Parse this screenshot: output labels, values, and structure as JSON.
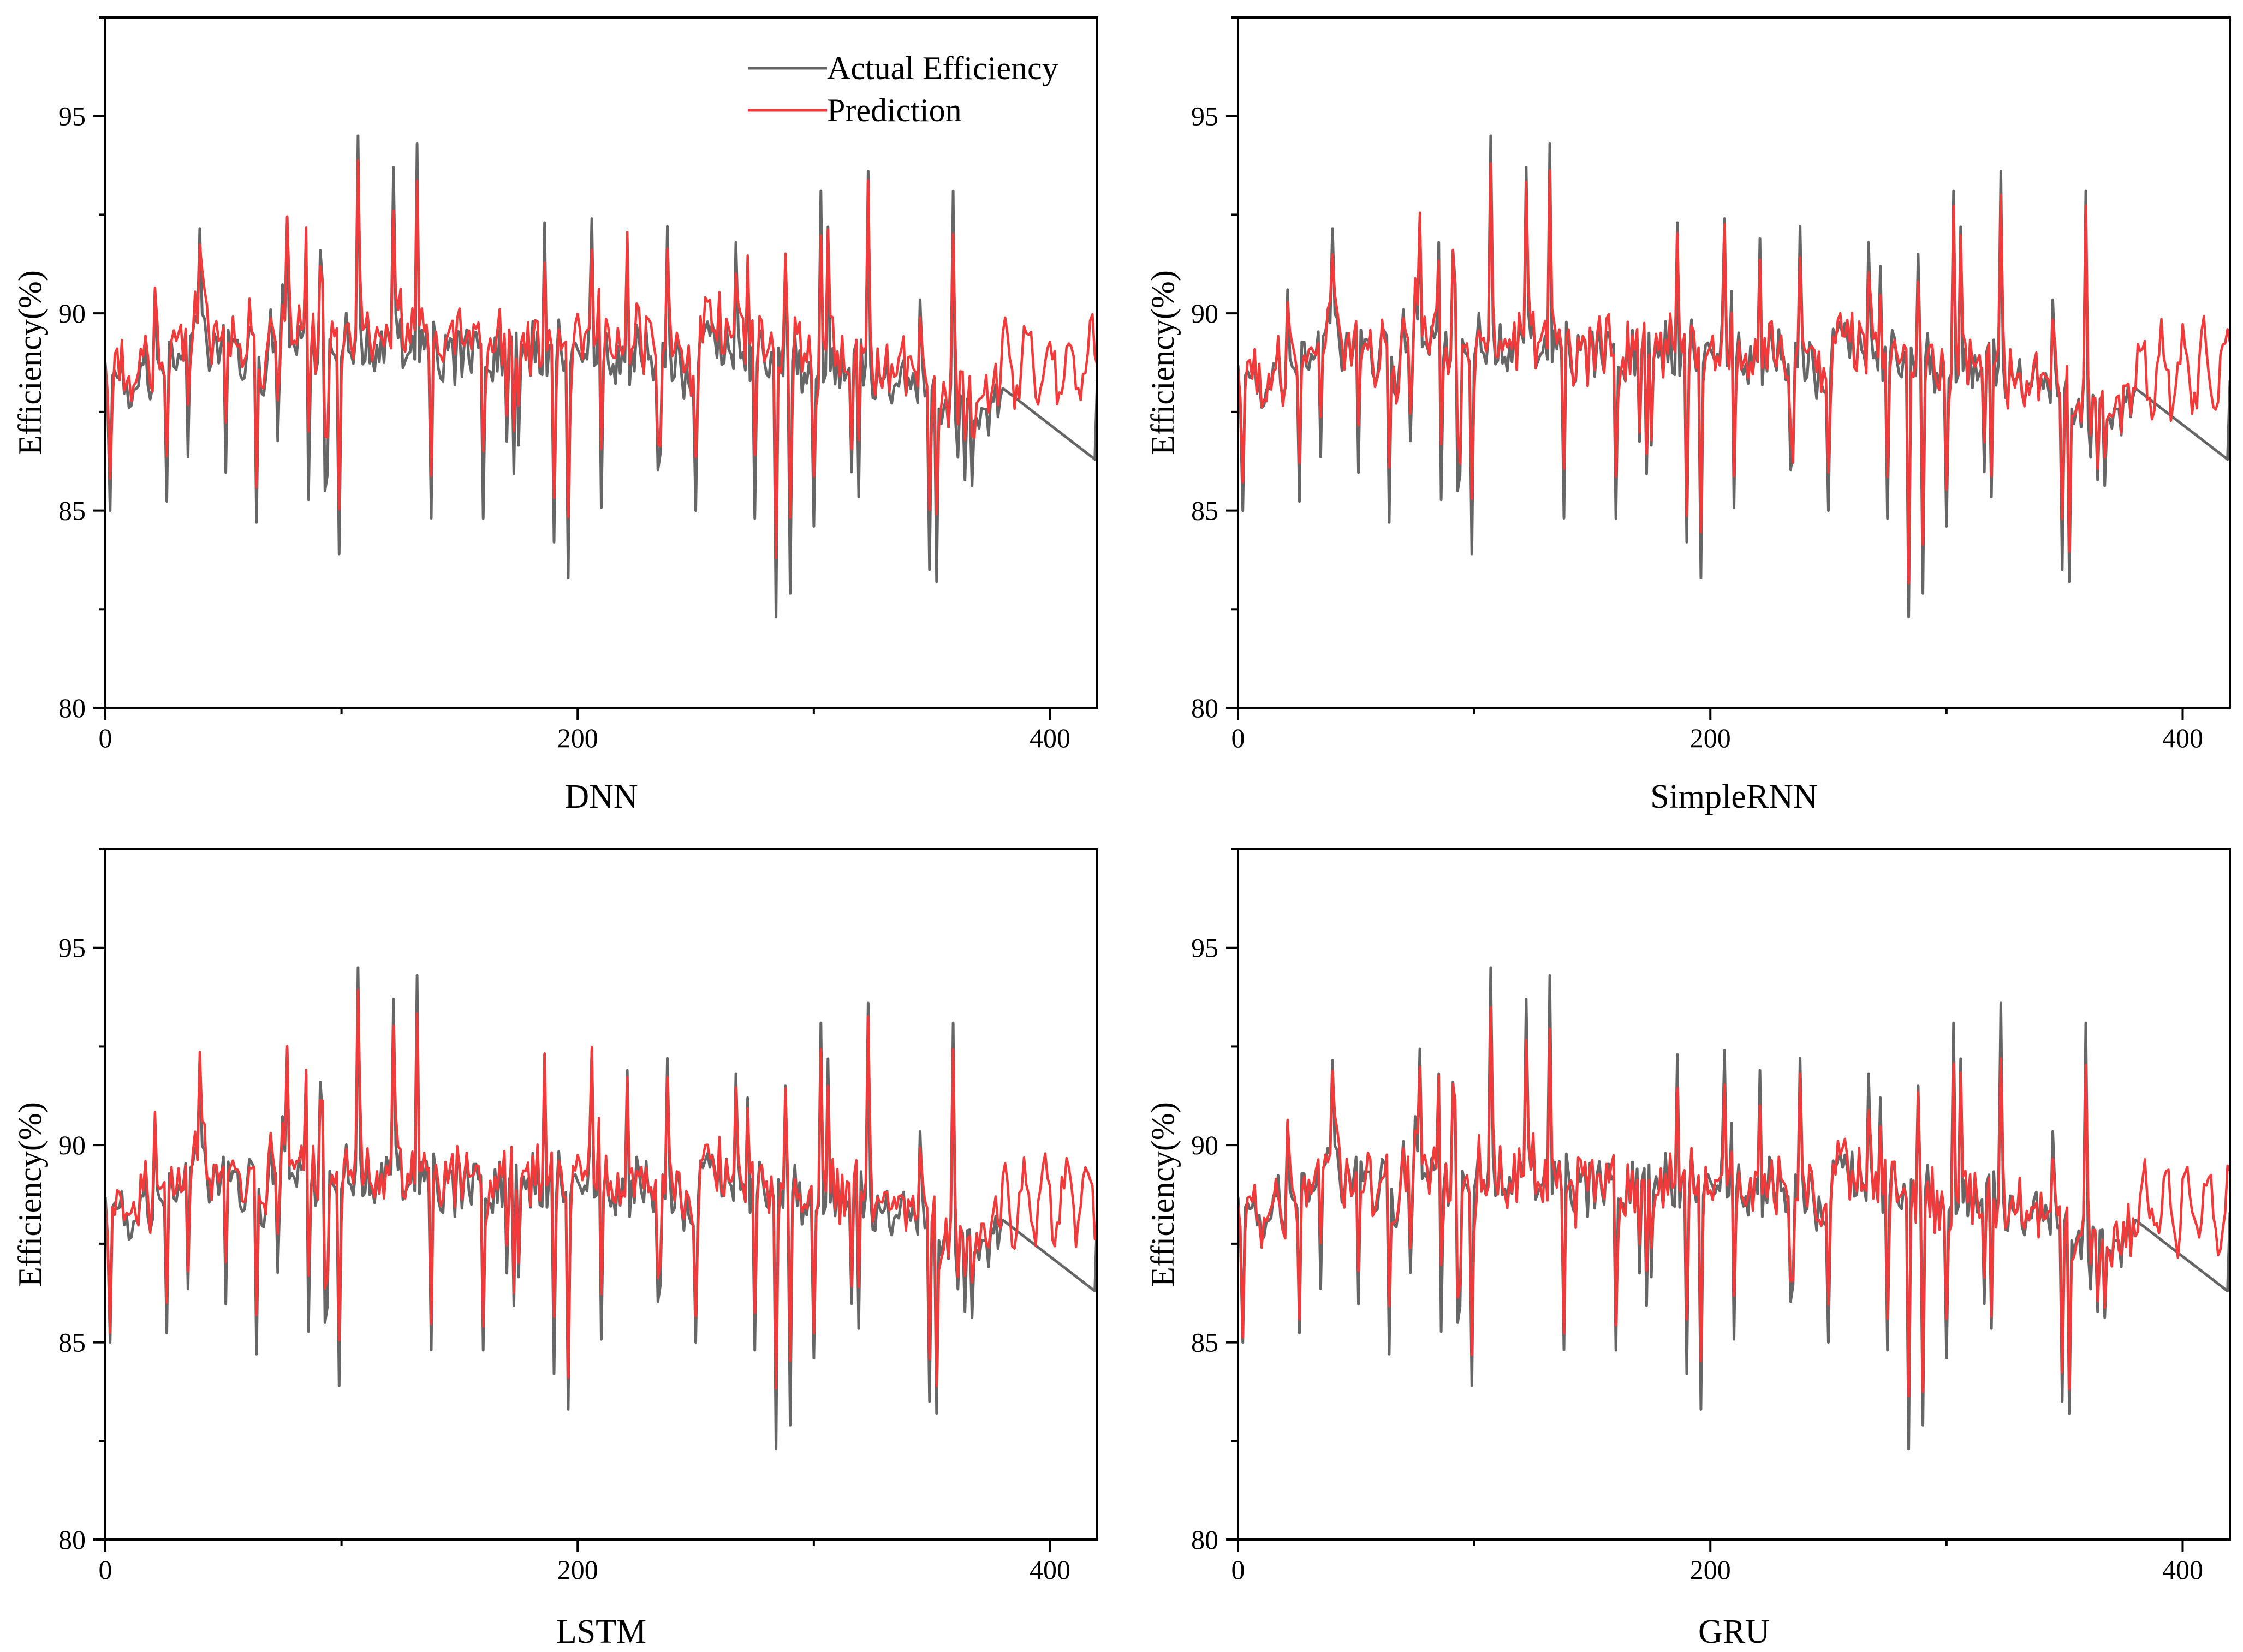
{
  "figure": {
    "legend": {
      "actual_label": "Actual Efficiency",
      "prediction_label": "Prediction"
    },
    "colors": {
      "actual": "#666666",
      "prediction": "#f23a3a",
      "axis": "#000000"
    }
  },
  "chart_data": [
    {
      "type": "line",
      "panel_label": "DNN",
      "xlabel": "",
      "ylabel": "Efficiency(%)",
      "xlim": [
        0,
        420
      ],
      "ylim": [
        80,
        97.5
      ],
      "xticks": [
        "0",
        "200",
        "400"
      ],
      "yticks": [
        "80",
        "85",
        "90",
        "95"
      ],
      "legend_position": "top-right",
      "show_legend": true,
      "series": [
        {
          "name": "Actual Efficiency",
          "seed": 7,
          "values_note": "shared actual series"
        },
        {
          "name": "Prediction",
          "seed": 11,
          "fit": 0.78,
          "noise": 0.55,
          "bias": 0.35
        }
      ]
    },
    {
      "type": "line",
      "panel_label": "SimpleRNN",
      "xlabel": "",
      "ylabel": "Efficiency(%)",
      "xlim": [
        0,
        420
      ],
      "ylim": [
        80,
        97.5
      ],
      "xticks": [
        "0",
        "200",
        "400"
      ],
      "yticks": [
        "80",
        "85",
        "90",
        "95"
      ],
      "legend_position": "none",
      "show_legend": false,
      "series": [
        {
          "name": "Actual Efficiency",
          "seed": 7,
          "values_note": "shared actual series"
        },
        {
          "name": "Prediction",
          "seed": 23,
          "fit": 0.82,
          "noise": 0.45,
          "bias": 0.15
        }
      ]
    },
    {
      "type": "line",
      "panel_label": "LSTM",
      "xlabel": "",
      "ylabel": "Efficiency(%)",
      "xlim": [
        0,
        420
      ],
      "ylim": [
        80,
        97.5
      ],
      "xticks": [
        "0",
        "200",
        "400"
      ],
      "yticks": [
        "80",
        "85",
        "90",
        "95"
      ],
      "legend_position": "none",
      "show_legend": false,
      "series": [
        {
          "name": "Actual Efficiency",
          "seed": 7,
          "values_note": "shared actual series"
        },
        {
          "name": "Prediction",
          "seed": 31,
          "fit": 0.84,
          "noise": 0.45,
          "bias": 0.2
        }
      ]
    },
    {
      "type": "line",
      "panel_label": "GRU",
      "xlabel": "",
      "ylabel": "Efficiency(%)",
      "xlim": [
        0,
        420
      ],
      "ylim": [
        80,
        97.5
      ],
      "xticks": [
        "0",
        "200",
        "400"
      ],
      "yticks": [
        "80",
        "85",
        "90",
        "95"
      ],
      "legend_position": "none",
      "show_legend": false,
      "series": [
        {
          "name": "Actual Efficiency",
          "seed": 7,
          "values_note": "shared actual series"
        },
        {
          "name": "Prediction",
          "seed": 47,
          "fit": 0.8,
          "noise": 0.5,
          "bias": 0.05
        }
      ]
    }
  ]
}
